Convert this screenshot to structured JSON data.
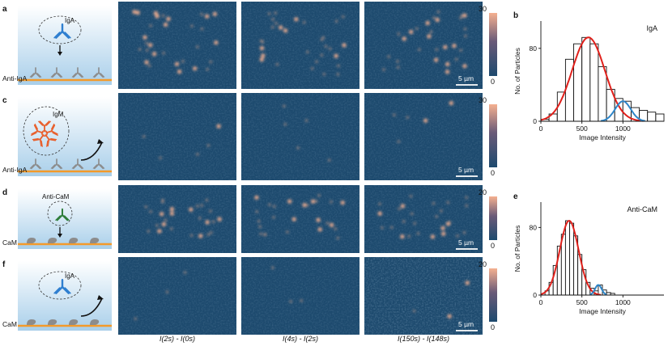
{
  "rows": [
    {
      "letter": "a",
      "analyte": "IgA",
      "surface": "Anti-IgA",
      "analyte_color": "#2f7fd0",
      "scalebar": "5 µm",
      "cbar": {
        "max": "30",
        "min": "0"
      },
      "kind": "y-antibody-in",
      "ligand": "antibody",
      "density": 1.0
    },
    {
      "letter": "c",
      "analyte": "IgM",
      "surface": "Anti-IgA",
      "analyte_color": "#e8602e",
      "scalebar": "5 µm",
      "cbar": {
        "max": "30",
        "min": "0"
      },
      "kind": "igm-away",
      "ligand": "antibody",
      "density": 0.15
    },
    {
      "letter": "d",
      "analyte": "Anti-CaM",
      "surface": "CaM",
      "analyte_color": "#2e7d3a",
      "scalebar": "5 µm",
      "cbar": {
        "max": "20",
        "min": "0"
      },
      "kind": "y-antibody-in",
      "ligand": "cam",
      "density": 0.85
    },
    {
      "letter": "f",
      "analyte": "IgA",
      "surface": "CaM",
      "analyte_color": "#2f7fd0",
      "scalebar": "5 µm",
      "cbar": {
        "max": "20",
        "min": "0"
      },
      "kind": "y-antibody-away",
      "ligand": "cam",
      "density": 0.1
    }
  ],
  "column_labels": [
    "I(2s) - I(0s)",
    "I(4s) - I(2s)",
    "I(150s) - I(148s)"
  ],
  "colors": {
    "map_low": "#1d4a6e",
    "map_high": "#f5b090",
    "sky_top": "#ffffff",
    "sky_bottom": "#a9cfea",
    "substrate": "#f39a2a",
    "receptor": "#8c8c8c",
    "fit_red": "#e0201b",
    "fit_blue": "#2e86c9"
  },
  "chart_data": [
    {
      "panel": "b",
      "type": "bar",
      "annotation": "IgA",
      "xlabel": "Image Intensity",
      "ylabel": "No. of Particles",
      "xlim": [
        0,
        1500
      ],
      "ylim": [
        0,
        110
      ],
      "xticks": [
        "0",
        "500",
        "1000"
      ],
      "yticks": [
        "0",
        "80"
      ],
      "bin_width": 100,
      "bins_left": [
        0,
        100,
        200,
        300,
        400,
        500,
        600,
        700,
        800,
        900,
        1000,
        1100,
        1200,
        1300,
        1400
      ],
      "values": [
        2,
        8,
        32,
        68,
        85,
        92,
        85,
        60,
        35,
        25,
        22,
        15,
        12,
        10,
        8
      ],
      "series": [
        {
          "name": "",
          "type": "gaussian",
          "color": "#e0201b",
          "mean": 580,
          "sd": 200,
          "amplitude": 92
        },
        {
          "name": "",
          "type": "gaussian",
          "color": "#2e86c9",
          "mean": 1000,
          "sd": 95,
          "amplitude": 22
        }
      ]
    },
    {
      "panel": "e",
      "type": "bar",
      "annotation": "Anti-CaM",
      "xlabel": "Image Intensity",
      "ylabel": "No. of Particles",
      "xlim": [
        0,
        1500
      ],
      "ylim": [
        0,
        110
      ],
      "xticks": [
        "0",
        "500",
        "1000"
      ],
      "yticks": [
        "0",
        "80"
      ],
      "bin_width": 50,
      "bins_left": [
        50,
        100,
        150,
        200,
        250,
        300,
        350,
        400,
        450,
        500,
        550,
        600,
        650,
        700,
        750,
        800,
        850
      ],
      "values": [
        5,
        15,
        35,
        58,
        72,
        88,
        85,
        70,
        48,
        30,
        15,
        8,
        5,
        12,
        6,
        3,
        2
      ],
      "series": [
        {
          "name": "",
          "type": "gaussian",
          "color": "#e0201b",
          "mean": 345,
          "sd": 115,
          "amplitude": 88
        },
        {
          "name": "",
          "type": "gaussian",
          "color": "#2e86c9",
          "mean": 700,
          "sd": 40,
          "amplitude": 12
        }
      ]
    }
  ]
}
